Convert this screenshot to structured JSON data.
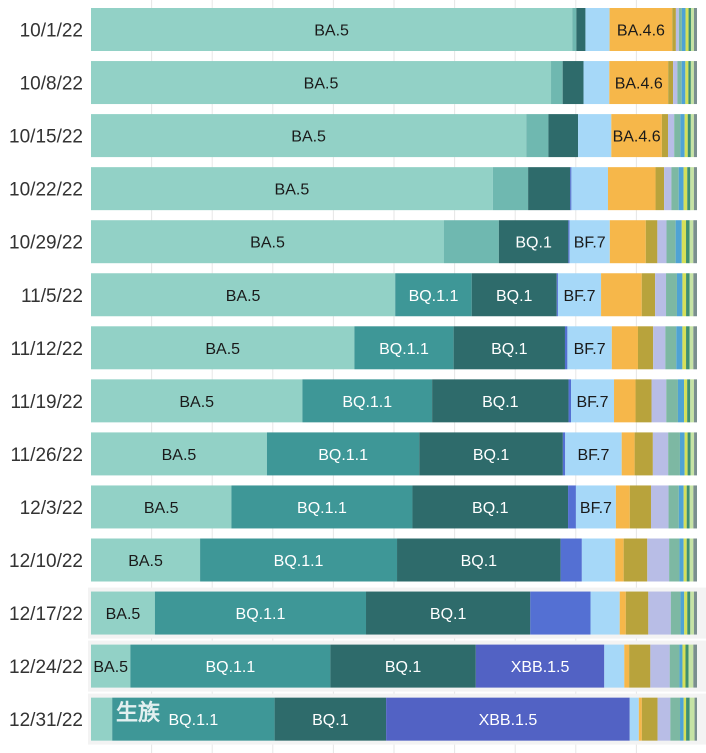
{
  "chart_data": {
    "type": "bar",
    "orientation": "horizontal",
    "stacked": true,
    "normalized": true,
    "categories": [
      "10/1/22",
      "10/8/22",
      "10/15/22",
      "10/22/22",
      "10/29/22",
      "11/5/22",
      "11/12/22",
      "11/19/22",
      "11/26/22",
      "12/3/22",
      "12/10/22",
      "12/17/22",
      "12/24/22",
      "12/31/22"
    ],
    "grid": "vertical",
    "series": [
      {
        "name": "BA.5",
        "color": "#92d1c6",
        "values": [
          79.8,
          75.0,
          70.6,
          65.9,
          57.9,
          50.1,
          43.3,
          34.4,
          29.9,
          23.2,
          18.0,
          10.5,
          6.5,
          3.5
        ]
      },
      {
        "name": "",
        "color": "#6fb8b0",
        "values": [
          0.7,
          1.9,
          3.6,
          5.8,
          9.0,
          0,
          0,
          0,
          0,
          0,
          0,
          0,
          0,
          0
        ]
      },
      {
        "name": "BQ.1.1",
        "color": "#3e9797",
        "values": [
          0,
          0,
          0,
          0,
          0,
          12.6,
          16.3,
          21.1,
          25.9,
          29.9,
          32.5,
          34.7,
          33.0,
          26.8
        ]
      },
      {
        "name": "BQ.1",
        "color": "#2e6b6b",
        "values": [
          1.5,
          3.4,
          4.8,
          6.9,
          11.4,
          14.0,
          18.3,
          22.2,
          24.4,
          25.7,
          27.0,
          27.0,
          24.0,
          18.4
        ]
      },
      {
        "name": "",
        "color": "#5470d3",
        "values": [
          0,
          0,
          0,
          0.2,
          0.2,
          0.2,
          0.4,
          0.4,
          0.4,
          1.3,
          3.5,
          9.9,
          0,
          0
        ]
      },
      {
        "name": "XBB.1.5",
        "color": "#5262c4",
        "values": [
          0,
          0,
          0,
          0,
          0,
          0,
          0,
          0,
          0,
          0,
          0,
          0,
          21.2,
          40.2
        ]
      },
      {
        "name": "BF.7",
        "color": "#a6d8f8",
        "values": [
          4.0,
          4.2,
          5.4,
          6.0,
          6.6,
          7.1,
          7.3,
          7.0,
          9.6,
          6.6,
          5.5,
          4.8,
          3.3,
          1.5
        ]
      },
      {
        "name": "BA.4.6",
        "color": "#f6b74a",
        "values": [
          10.4,
          9.6,
          8.2,
          7.8,
          5.9,
          6.7,
          4.3,
          3.5,
          2.2,
          2.3,
          1.4,
          1.0,
          0.8,
          0.5
        ]
      },
      {
        "name": "",
        "color": "#b8a33c",
        "values": [
          0.6,
          0.8,
          1.0,
          1.4,
          1.9,
          2.2,
          2.5,
          2.6,
          3.1,
          3.5,
          3.9,
          3.7,
          3.5,
          2.6
        ]
      },
      {
        "name": "",
        "color": "#b8bde6",
        "values": [
          0.5,
          0.7,
          1.0,
          1.2,
          1.5,
          1.8,
          2.0,
          2.4,
          2.6,
          2.9,
          3.6,
          3.7,
          3.2,
          2.1
        ]
      },
      {
        "name": "",
        "color": "#7db8a3",
        "values": [
          0.5,
          0.7,
          1.0,
          1.2,
          1.5,
          1.8,
          1.8,
          1.9,
          2.0,
          1.7,
          1.7,
          1.6,
          1.6,
          1.6
        ]
      },
      {
        "name": "",
        "color": "#4fa3d4",
        "values": [
          0.6,
          0.6,
          0.7,
          0.8,
          1.0,
          0.9,
          1.0,
          1.0,
          0.8,
          0.8,
          0.7,
          0.6,
          0.5,
          0.6
        ]
      },
      {
        "name": "",
        "color": "#d5e05a",
        "values": [
          0.5,
          0.5,
          0.5,
          0.6,
          0.7,
          0.6,
          0.6,
          0.5,
          0.5,
          0.5,
          0.5,
          0.5,
          0.5,
          0.4
        ]
      },
      {
        "name": "",
        "color": "#3f8f6f",
        "values": [
          0.4,
          0.4,
          0.5,
          0.5,
          0.6,
          0.6,
          0.6,
          0.5,
          0.5,
          0.5,
          0.5,
          0.5,
          0.5,
          0.6
        ]
      },
      {
        "name": "",
        "color": "#c6e3a5",
        "values": [
          0.5,
          0.5,
          0.5,
          0.6,
          0.6,
          0.6,
          0.6,
          0.6,
          0.6,
          0.6,
          0.6,
          0.6,
          0.8,
          0.8
        ]
      },
      {
        "name": "",
        "color": "#7a8f8f",
        "values": [
          0.5,
          0.5,
          0.5,
          0.5,
          0.6,
          0.6,
          0.6,
          0.5,
          0.5,
          0.6,
          0.6,
          0.5,
          0.6,
          0.4
        ]
      }
    ],
    "segment_labels": [
      {
        "row": 0,
        "series": 0,
        "text": "BA.5"
      },
      {
        "row": 0,
        "series": 7,
        "text": "BA.4.6"
      },
      {
        "row": 1,
        "series": 0,
        "text": "BA.5"
      },
      {
        "row": 1,
        "series": 7,
        "text": "BA.4.6"
      },
      {
        "row": 2,
        "series": 0,
        "text": "BA.5"
      },
      {
        "row": 2,
        "series": 7,
        "text": "BA.4.6"
      },
      {
        "row": 3,
        "series": 0,
        "text": "BA.5"
      },
      {
        "row": 4,
        "series": 0,
        "text": "BA.5"
      },
      {
        "row": 4,
        "series": 3,
        "text": "BQ.1"
      },
      {
        "row": 4,
        "series": 6,
        "text": "BF.7"
      },
      {
        "row": 5,
        "series": 0,
        "text": "BA.5"
      },
      {
        "row": 5,
        "series": 2,
        "text": "BQ.1.1"
      },
      {
        "row": 5,
        "series": 3,
        "text": "BQ.1"
      },
      {
        "row": 5,
        "series": 6,
        "text": "BF.7"
      },
      {
        "row": 6,
        "series": 0,
        "text": "BA.5"
      },
      {
        "row": 6,
        "series": 2,
        "text": "BQ.1.1"
      },
      {
        "row": 6,
        "series": 3,
        "text": "BQ.1"
      },
      {
        "row": 6,
        "series": 6,
        "text": "BF.7"
      },
      {
        "row": 7,
        "series": 0,
        "text": "BA.5"
      },
      {
        "row": 7,
        "series": 2,
        "text": "BQ.1.1"
      },
      {
        "row": 7,
        "series": 3,
        "text": "BQ.1"
      },
      {
        "row": 7,
        "series": 6,
        "text": "BF.7"
      },
      {
        "row": 8,
        "series": 0,
        "text": "BA.5"
      },
      {
        "row": 8,
        "series": 2,
        "text": "BQ.1.1"
      },
      {
        "row": 8,
        "series": 3,
        "text": "BQ.1"
      },
      {
        "row": 8,
        "series": 6,
        "text": "BF.7"
      },
      {
        "row": 9,
        "series": 0,
        "text": "BA.5"
      },
      {
        "row": 9,
        "series": 2,
        "text": "BQ.1.1"
      },
      {
        "row": 9,
        "series": 3,
        "text": "BQ.1"
      },
      {
        "row": 9,
        "series": 6,
        "text": "BF.7"
      },
      {
        "row": 10,
        "series": 0,
        "text": "BA.5"
      },
      {
        "row": 10,
        "series": 2,
        "text": "BQ.1.1"
      },
      {
        "row": 10,
        "series": 3,
        "text": "BQ.1"
      },
      {
        "row": 11,
        "series": 0,
        "text": "BA.5"
      },
      {
        "row": 11,
        "series": 2,
        "text": "BQ.1.1"
      },
      {
        "row": 11,
        "series": 3,
        "text": "BQ.1"
      },
      {
        "row": 12,
        "series": 0,
        "text": "BA.5"
      },
      {
        "row": 12,
        "series": 2,
        "text": "BQ.1.1"
      },
      {
        "row": 12,
        "series": 3,
        "text": "BQ.1"
      },
      {
        "row": 12,
        "series": 5,
        "text": "XBB.1.5"
      },
      {
        "row": 13,
        "series": 2,
        "text": "BQ.1.1"
      },
      {
        "row": 13,
        "series": 3,
        "text": "BQ.1"
      },
      {
        "row": 13,
        "series": 5,
        "text": "XBB.1.5"
      }
    ],
    "label_text_colors": {
      "dark": "#1a1a1a",
      "light": "#ffffff"
    }
  },
  "watermark": {
    "text": "生族"
  }
}
